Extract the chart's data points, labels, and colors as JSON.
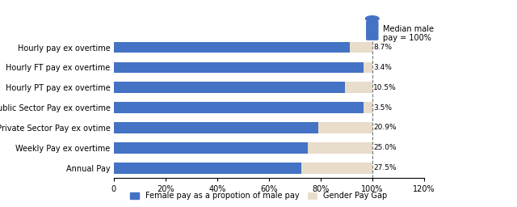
{
  "categories": [
    "Hourly pay ex overtime",
    "Hourly FT pay ex overtime",
    "Hourly PT pay ex overtime",
    "Hourly Public Sector Pay ex overtime",
    "Hourly Private Sector Pay ex ovtime",
    "Weekly Pay ex overtime",
    "Annual Pay"
  ],
  "female_pay": [
    91.3,
    96.6,
    89.5,
    96.5,
    79.1,
    75.0,
    72.5
  ],
  "gender_gap": [
    8.7,
    3.4,
    10.5,
    3.5,
    20.9,
    25.0,
    27.5
  ],
  "gap_labels": [
    "8.7%",
    "3.4%",
    "10.5%",
    "3.5%",
    "20.9%",
    "25.0%",
    "27.5%"
  ],
  "bar_color_female": "#4472C4",
  "bar_color_gap": "#E8DCCA",
  "xlim": [
    0,
    120
  ],
  "xticks": [
    0,
    20,
    40,
    60,
    80,
    100,
    120
  ],
  "xtick_labels": [
    "0",
    "20%",
    "40%",
    "60%",
    "80%",
    "100%",
    "120%"
  ],
  "legend_female_label": "Female pay as a propotion of male pay",
  "legend_gap_label": "Gender Pay Gap",
  "annotation_text": "Median male\npay = 100%",
  "bar_color_female_dark": "#3A5FA0",
  "icon_color": "#4472C4"
}
